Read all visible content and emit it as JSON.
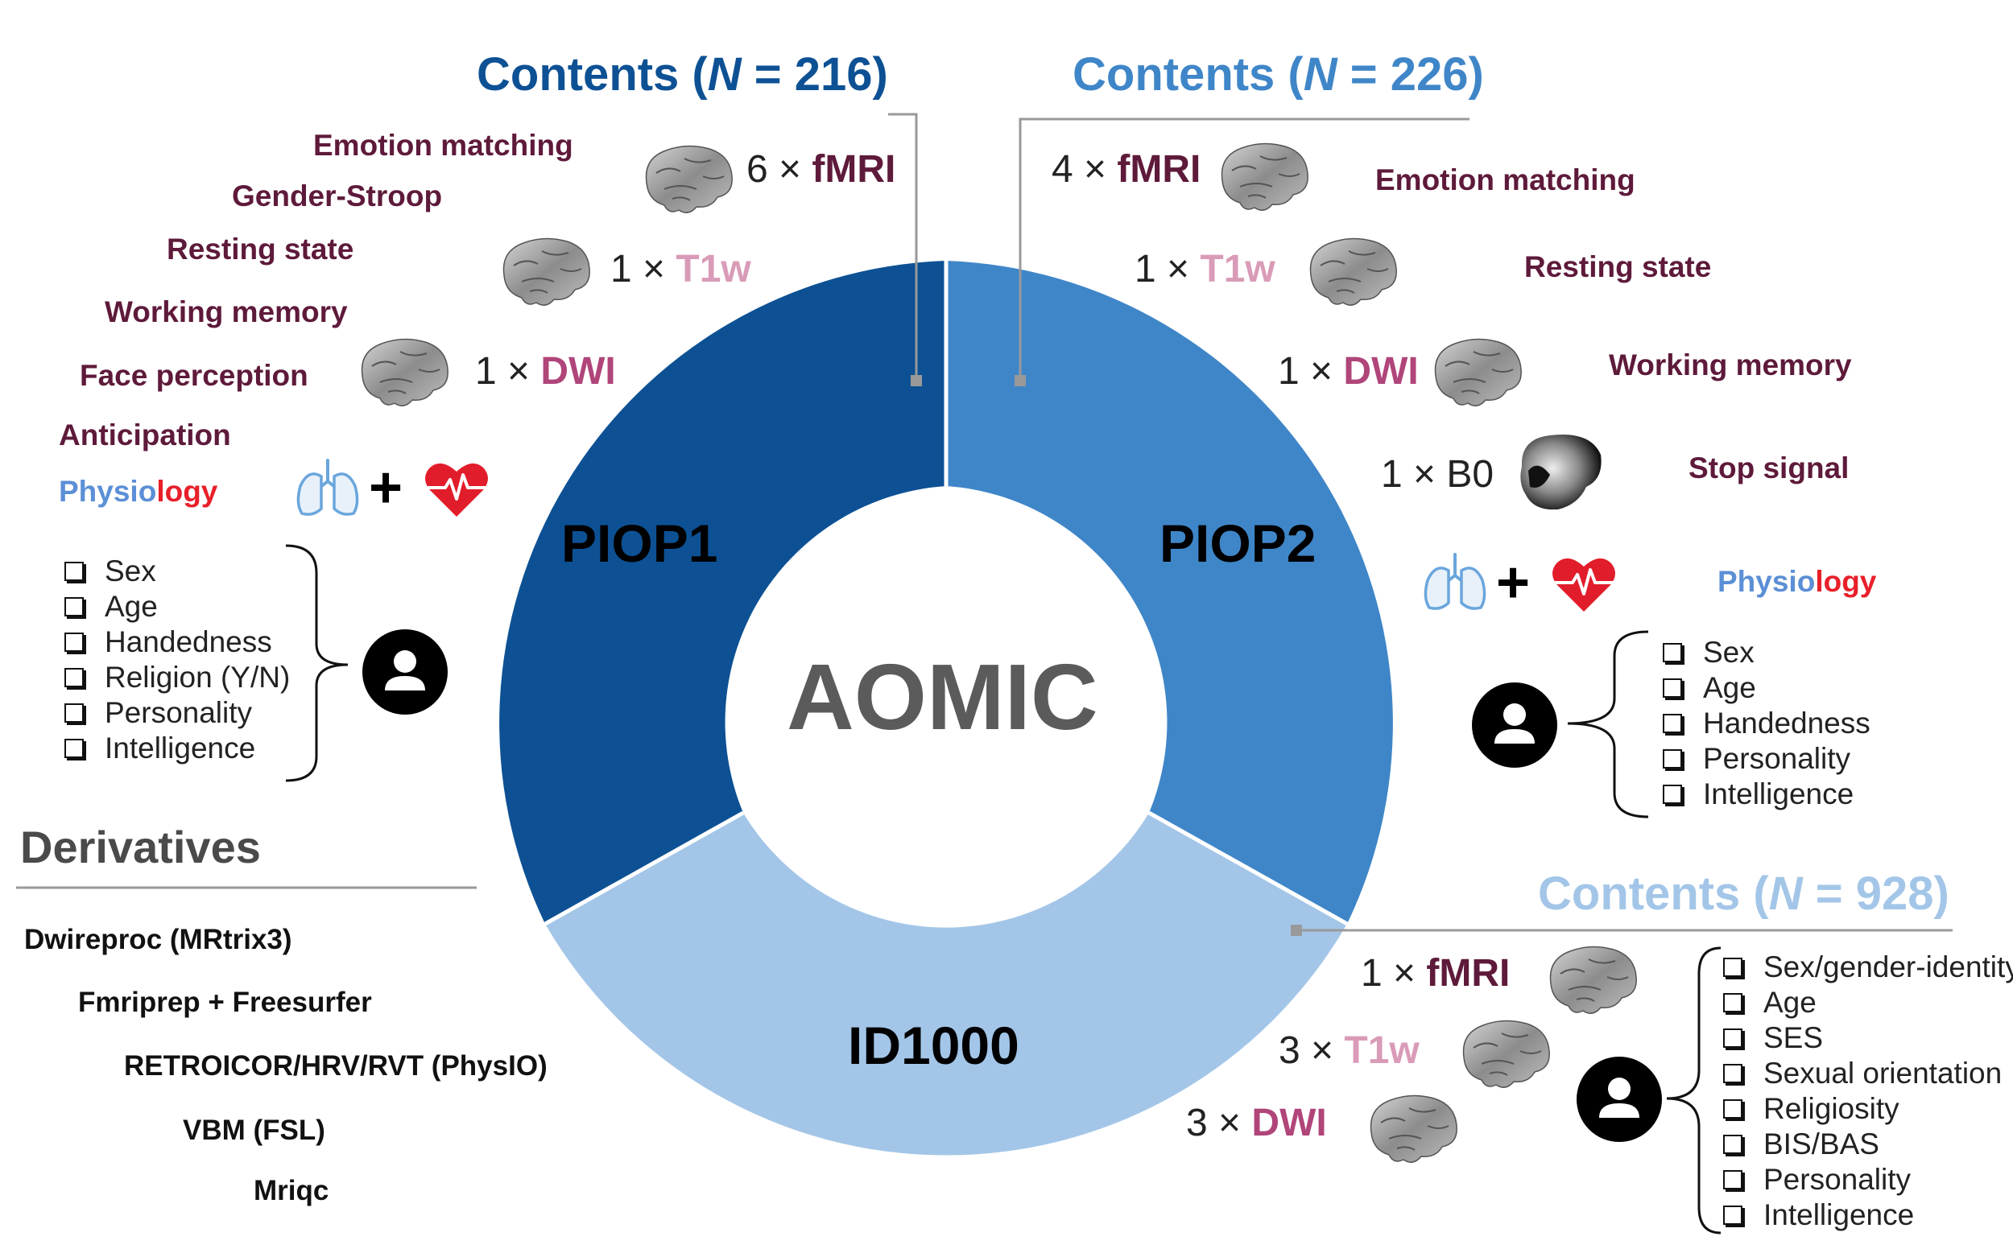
{
  "center_label": "AOMIC",
  "segments": [
    {
      "label": "PIOP1",
      "color": "#0d5194"
    },
    {
      "label": "PIOP2",
      "color": "#3f86c8"
    },
    {
      "label": "ID1000",
      "color": "#a3c6e8"
    }
  ],
  "piop1": {
    "heading": {
      "prefix": "Contents (",
      "n": "N",
      "suffix": " = 216)",
      "color": "#0d5194"
    },
    "tasks": [
      "Emotion matching",
      "Gender-Stroop",
      "Resting state",
      "Working memory",
      "Face perception",
      "Anticipation"
    ],
    "physiology": {
      "part1": "Physio",
      "part2": "logy"
    },
    "modalities": [
      {
        "count": "6 × ",
        "name": "fMRI"
      },
      {
        "count": "1 × ",
        "name": "T1w"
      },
      {
        "count": "1 × ",
        "name": "DWI"
      }
    ],
    "demographics": [
      "Sex",
      "Age",
      "Handedness",
      "Religion (Y/N)",
      "Personality",
      "Intelligence"
    ]
  },
  "piop2": {
    "heading": {
      "prefix": "Contents (",
      "n": "N",
      "suffix": " = 226)",
      "color": "#3f86c8"
    },
    "tasks": [
      "Emotion matching",
      "Resting state",
      "Working memory",
      "Stop signal"
    ],
    "physiology": {
      "part1": "Physio",
      "part2": "logy"
    },
    "modalities": [
      {
        "count": "4 × ",
        "name": "fMRI"
      },
      {
        "count": "1 × ",
        "name": "T1w"
      },
      {
        "count": "1 × ",
        "name": "DWI"
      },
      {
        "count": "1 × ",
        "name": "B0"
      }
    ],
    "demographics": [
      "Sex",
      "Age",
      "Handedness",
      "Personality",
      "Intelligence"
    ]
  },
  "id1000": {
    "heading": {
      "prefix": "Contents (",
      "n": "N",
      "suffix": " = 928)",
      "color": "#a3c6e8"
    },
    "modalities": [
      {
        "count": "1 × ",
        "name": "fMRI"
      },
      {
        "count": "3 × ",
        "name": "T1w"
      },
      {
        "count": "3 × ",
        "name": "DWI"
      }
    ],
    "demographics": [
      "Sex/gender-identity",
      "Age",
      "SES",
      "Sexual orientation",
      "Religiosity",
      "BIS/BAS",
      "Personality",
      "Intelligence"
    ]
  },
  "derivatives": {
    "title": "Derivatives",
    "items": [
      "Dwireproc (MRtrix3)",
      "Fmriprep + Freesurfer",
      "RETROICOR/HRV/RVT (PhysIO)",
      "VBM (FSL)",
      "Mriqc"
    ]
  },
  "colors": {
    "task_text": "#5e1a3a",
    "fmri": "#5e1a3a",
    "t1w": "#d99bb8",
    "dwi": "#b0457a",
    "physio_blue": "#5b8fd6",
    "physio_red": "#e8202a",
    "heart": "#e21d2b",
    "lungs": "#6aa6dc"
  },
  "icons": [
    "brain-scan-icon",
    "lungs-icon",
    "heart-pulse-icon",
    "person-icon",
    "checkbox-icon",
    "b0-fieldmap-icon"
  ]
}
